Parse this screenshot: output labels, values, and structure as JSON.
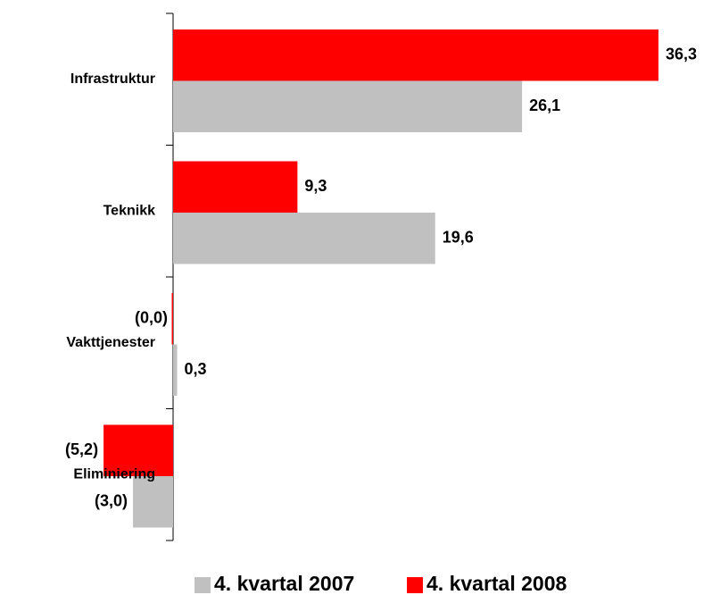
{
  "chart_data": {
    "type": "hbar",
    "categories": [
      "Infrastruktur",
      "Teknikk",
      "Vakttjenester",
      "Eliminiering"
    ],
    "series": [
      {
        "name": "4. kvartal 2007",
        "color": "#c0c0c0",
        "values": [
          26.1,
          19.6,
          0.3,
          -3.0
        ],
        "value_labels": [
          "26,1",
          "19,6",
          "0,3",
          "(3,0)"
        ]
      },
      {
        "name": "4. kvartal 2008",
        "color": "#ff0000",
        "values": [
          36.3,
          9.3,
          0.0,
          -5.2
        ],
        "value_labels": [
          "36,3",
          "9,3",
          "(0,0)",
          "(5,2)"
        ]
      }
    ],
    "legend": "bottom"
  }
}
